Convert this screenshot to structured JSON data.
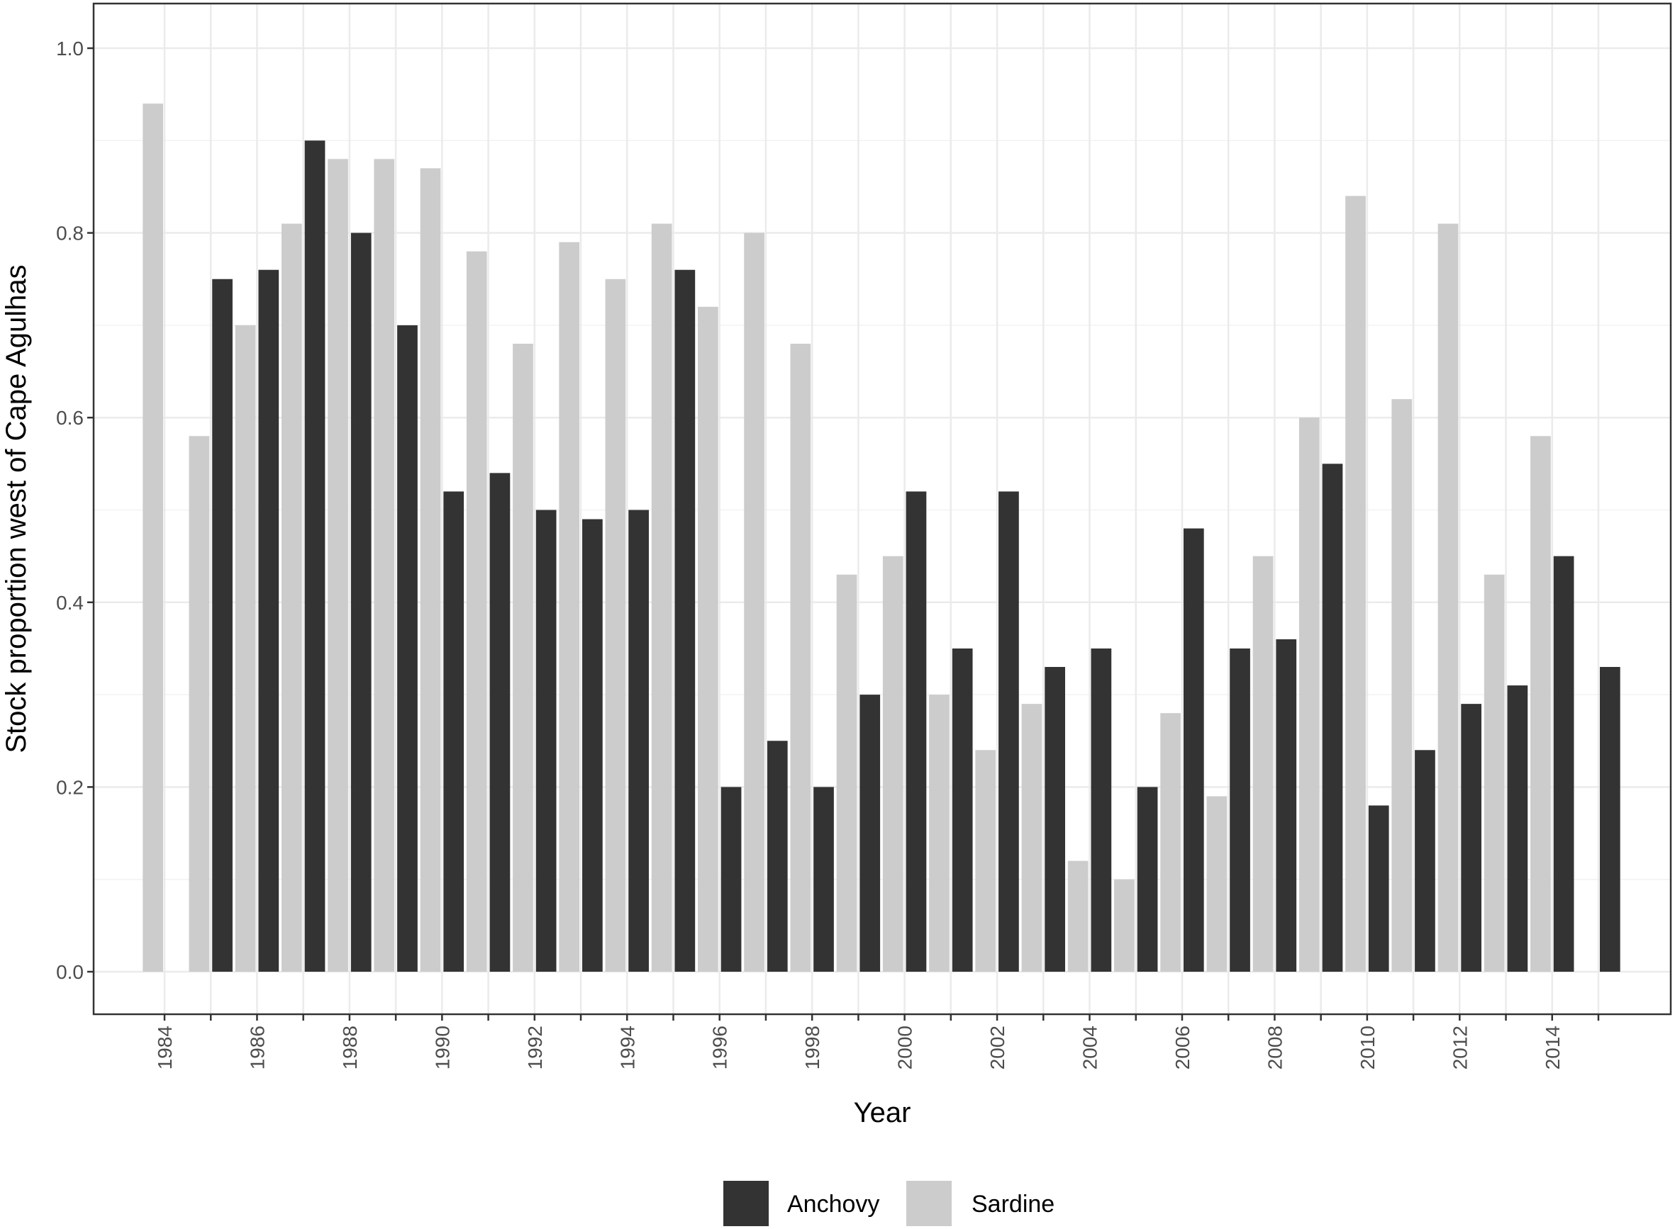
{
  "chart_data": {
    "type": "bar",
    "title": "",
    "xlabel": "Year",
    "ylabel": "Stock proportion west of Cape Agulhas",
    "ylim": [
      0,
      1.0
    ],
    "y_ticks": [
      "0.0",
      "0.2",
      "0.4",
      "0.6",
      "0.8",
      "1.0"
    ],
    "x_tick_labels": [
      "1984",
      "1986",
      "1988",
      "1990",
      "1992",
      "1994",
      "1996",
      "1998",
      "2000",
      "2002",
      "2004",
      "2006",
      "2008",
      "2010",
      "2012",
      "2014"
    ],
    "x": [
      1984,
      1985,
      1986,
      1987,
      1988,
      1989,
      1990,
      1991,
      1992,
      1993,
      1994,
      1995,
      1996,
      1997,
      1998,
      1999,
      2000,
      2001,
      2002,
      2003,
      2004,
      2005,
      2006,
      2007,
      2008,
      2009,
      2010,
      2011,
      2012,
      2013,
      2014,
      2015
    ],
    "series": [
      {
        "name": "Anchovy",
        "color": "#333333",
        "values": [
          null,
          0.75,
          0.76,
          0.9,
          0.8,
          0.7,
          0.52,
          0.54,
          0.5,
          0.49,
          0.5,
          0.76,
          0.2,
          0.25,
          0.2,
          0.3,
          0.52,
          0.35,
          0.52,
          0.33,
          0.35,
          0.2,
          0.48,
          0.35,
          0.36,
          0.55,
          0.18,
          0.24,
          0.29,
          0.31,
          0.45,
          0.33
        ]
      },
      {
        "name": "Sardine",
        "color": "#cccccc",
        "values": [
          0.94,
          0.58,
          0.7,
          0.81,
          0.88,
          0.88,
          0.87,
          0.78,
          0.68,
          0.79,
          0.75,
          0.81,
          0.72,
          0.8,
          0.68,
          0.43,
          0.45,
          0.3,
          0.24,
          0.29,
          0.12,
          0.1,
          0.28,
          0.19,
          0.45,
          0.6,
          0.84,
          0.62,
          0.81,
          0.43,
          0.58,
          null
        ]
      }
    ],
    "grid": true,
    "legend_position": "bottom"
  }
}
